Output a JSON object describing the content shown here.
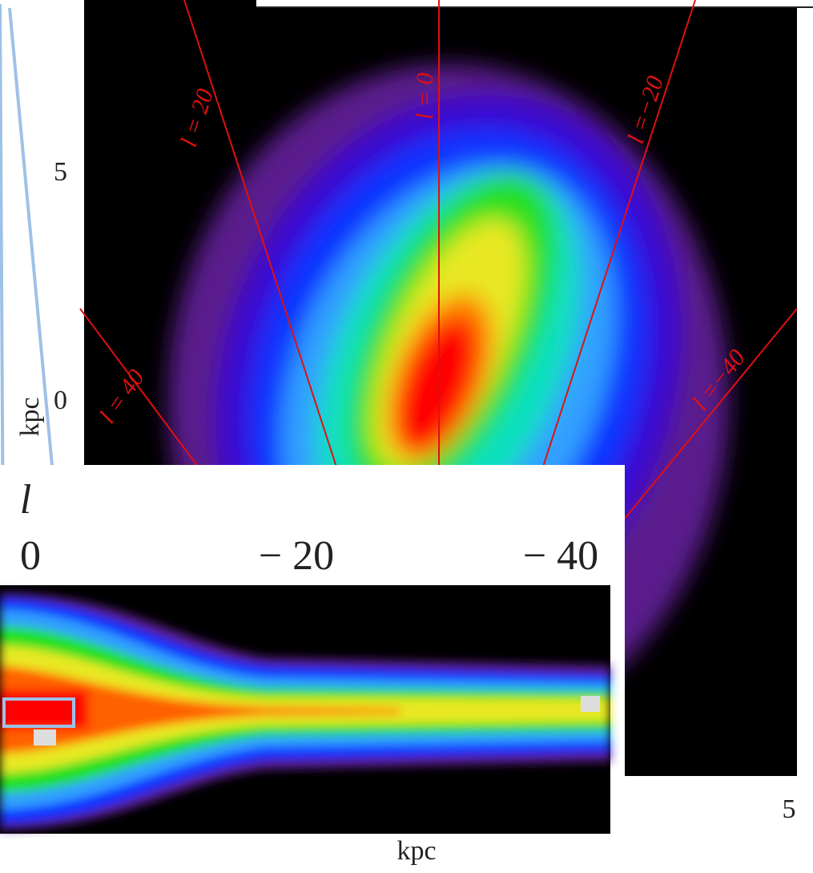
{
  "top_panel": {
    "y_label": "kpc",
    "y_ticks": [
      "5",
      "0"
    ],
    "x_tick": "5",
    "sightlines": [
      {
        "label": "l = 20"
      },
      {
        "label": "l = 0"
      },
      {
        "label": "l =−20"
      },
      {
        "label": "l = 40"
      },
      {
        "label": "l =−40"
      }
    ]
  },
  "bottom_panel": {
    "axis_label": "l",
    "ticks": [
      "0",
      "− 20",
      "− 40"
    ],
    "x_label": "kpc"
  }
}
